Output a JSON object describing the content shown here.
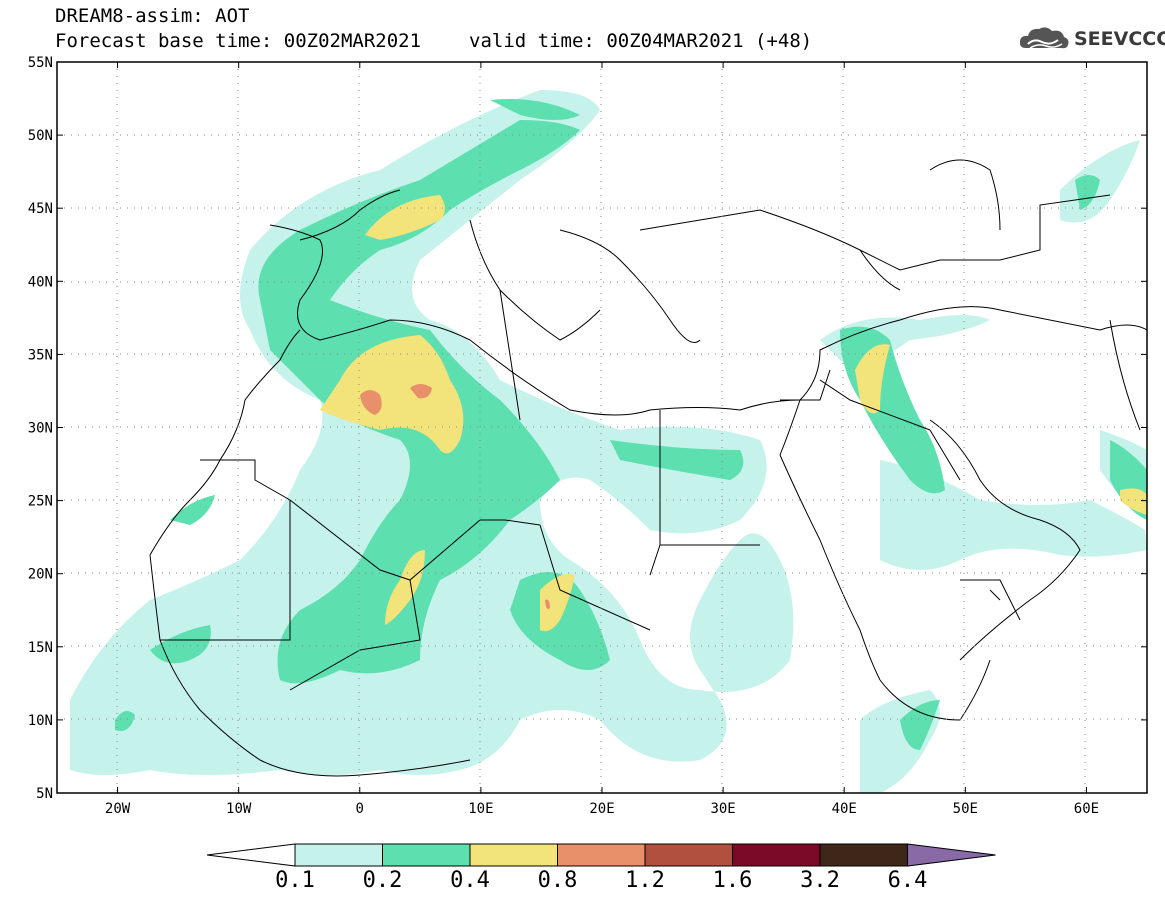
{
  "title": {
    "line1": "DREAM8-assim: AOT",
    "base_time": "Forecast base time: 00Z02MAR2021",
    "valid_time": "valid time: 00Z04MAR2021 (+48)"
  },
  "logo": {
    "text": "SEEVCCC",
    "icon": "cloud-icon"
  },
  "map": {
    "lon_range": [
      -25,
      65
    ],
    "lat_range": [
      5,
      55
    ],
    "lat_labels": [
      "55N",
      "50N",
      "45N",
      "40N",
      "35N",
      "30N",
      "25N",
      "20N",
      "15N",
      "10N",
      "5N"
    ],
    "lon_labels": [
      "20W",
      "10W",
      "0",
      "10E",
      "20E",
      "30E",
      "40E",
      "50E",
      "60E"
    ],
    "gridlines": "dotted"
  },
  "colorbar": {
    "levels": [
      "0.1",
      "0.2",
      "0.4",
      "0.8",
      "1.2",
      "1.6",
      "3.2",
      "6.4"
    ],
    "colors": [
      "#ffffff",
      "#c6f2ec",
      "#5ddfb0",
      "#f2e37a",
      "#e8906a",
      "#b0503e",
      "#7a0a26",
      "#3e2718",
      "#8a6aa6"
    ]
  },
  "colors": {
    "c1": "#c6f2ec",
    "c2": "#5ddfb0",
    "c3": "#f2e37a",
    "c4": "#e8906a"
  }
}
